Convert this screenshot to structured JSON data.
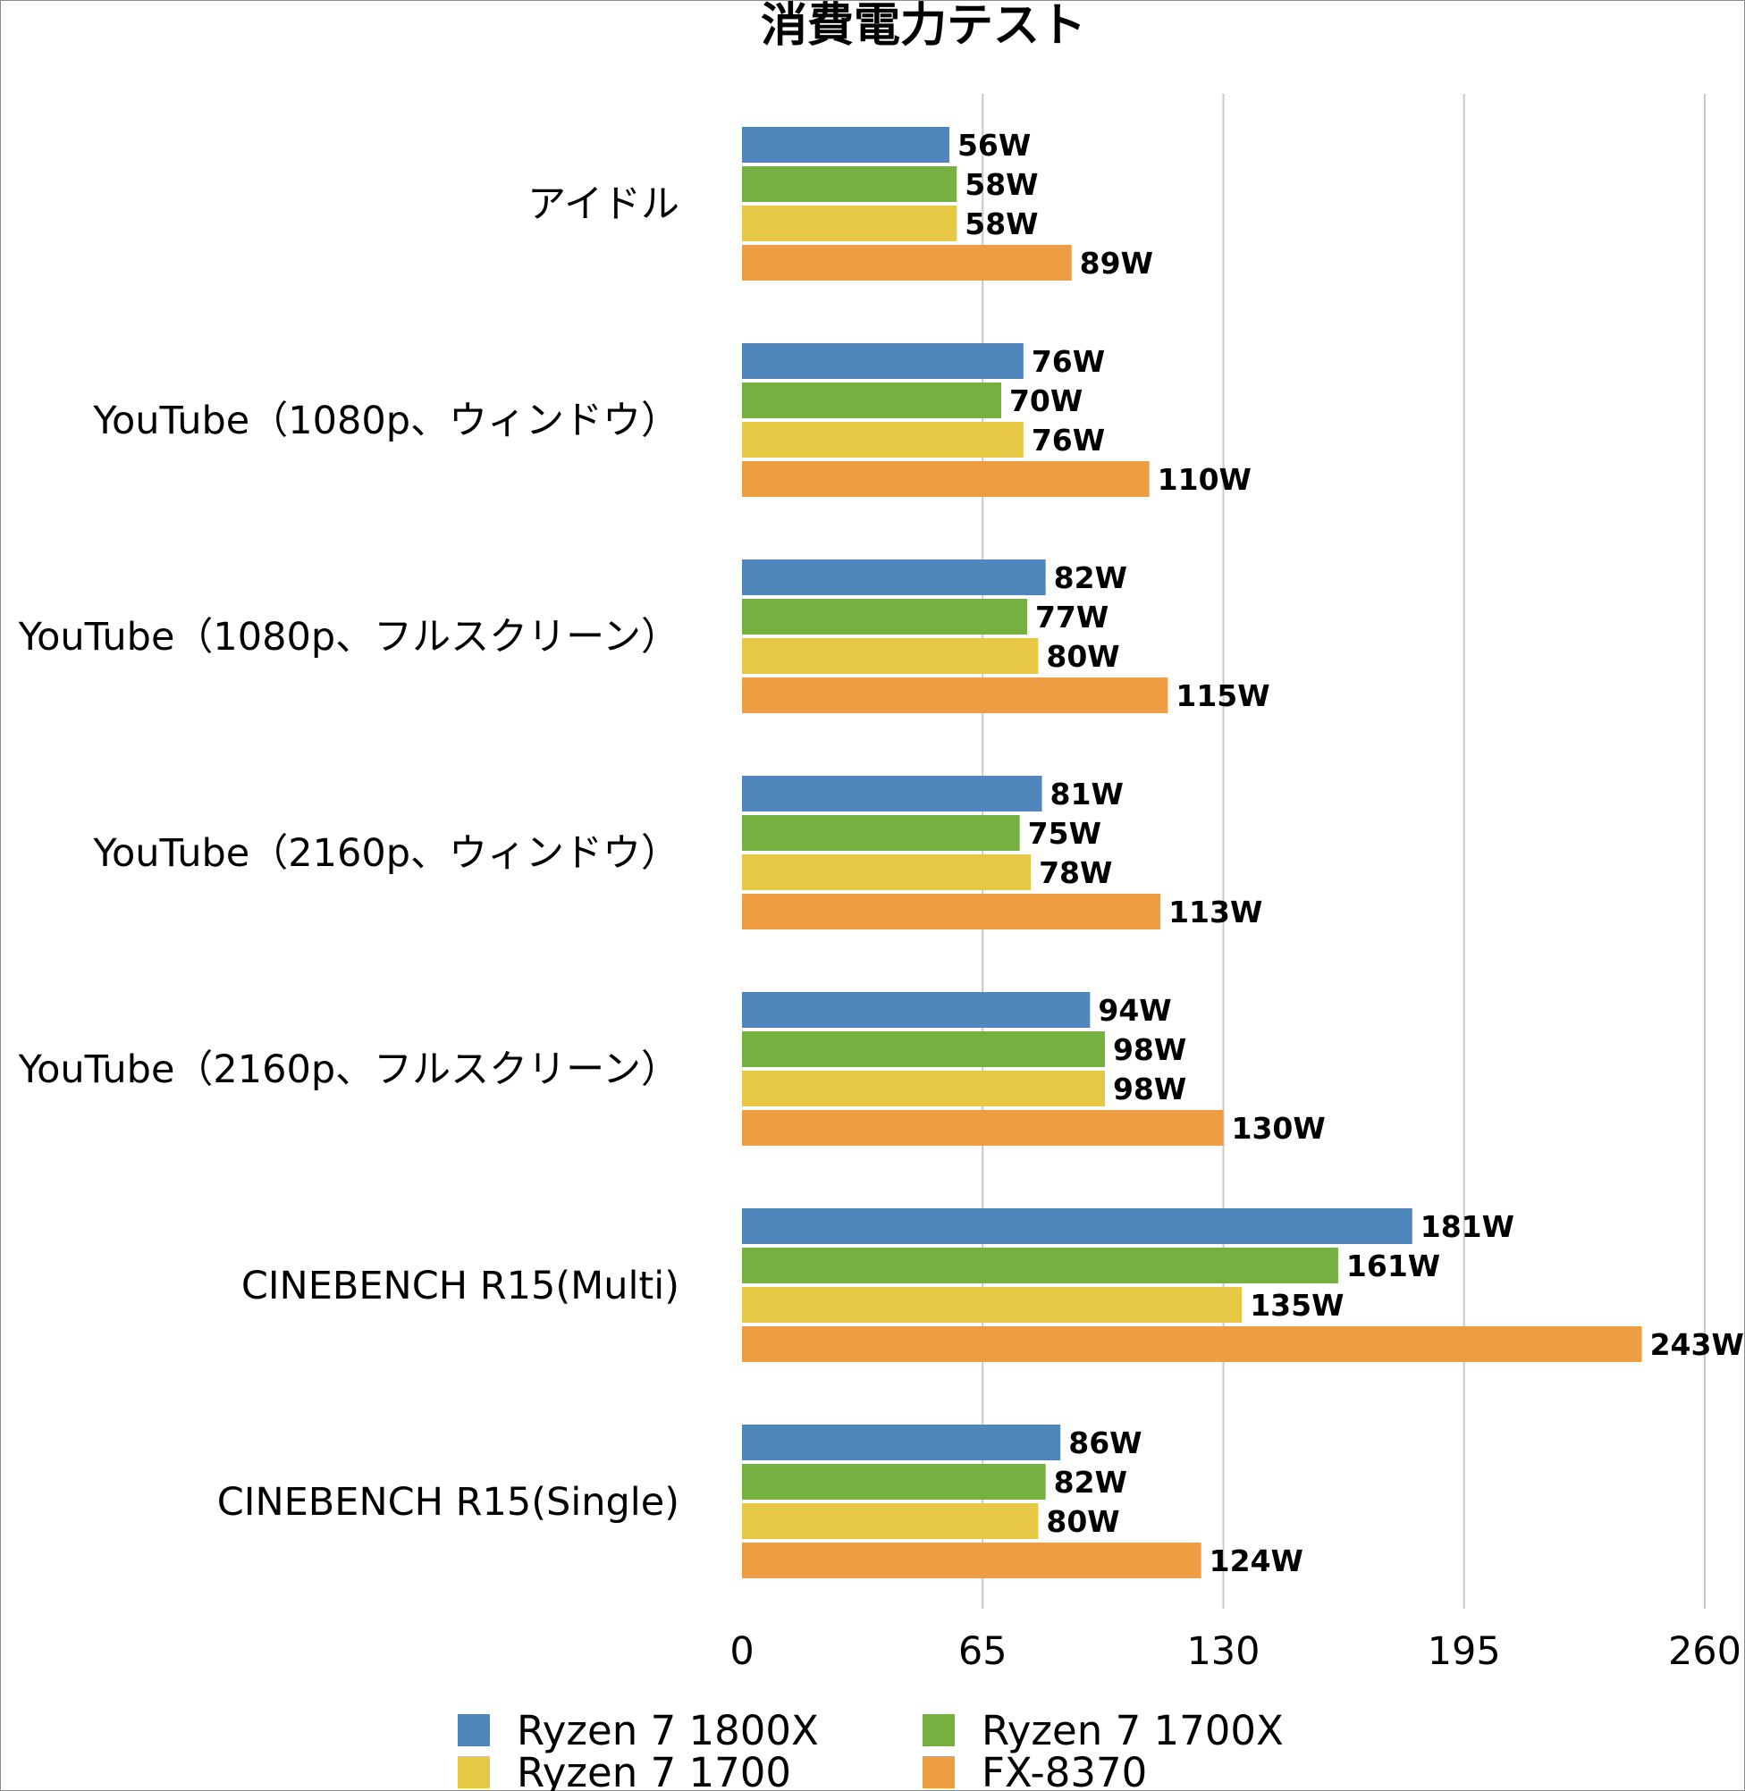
{
  "chart_data": {
    "type": "bar",
    "orientation": "horizontal",
    "title": "消費電力テスト",
    "categories": [
      "アイドル",
      "YouTube（1080p、ウィンドウ）",
      "YouTube（1080p、フルスクリーン）",
      "YouTube（2160p、ウィンドウ）",
      "YouTube（2160p、フルスクリーン）",
      "CINEBENCH R15(Multi)",
      "CINEBENCH R15(Single)"
    ],
    "series": [
      {
        "name": "Ryzen 7 1800X",
        "color": "#4f86bb",
        "values": [
          56,
          76,
          82,
          81,
          94,
          181,
          86
        ],
        "labels": [
          "56W",
          "76W",
          "82W",
          "81W",
          "94W",
          "181W",
          "86W"
        ]
      },
      {
        "name": "Ryzen 7 1700X",
        "color": "#76b041",
        "values": [
          58,
          70,
          77,
          75,
          98,
          161,
          82
        ],
        "labels": [
          "58W",
          "70W",
          "77W",
          "75W",
          "98W",
          "161W",
          "82W"
        ]
      },
      {
        "name": "Ryzen 7 1700",
        "color": "#e6c844",
        "values": [
          58,
          76,
          80,
          78,
          98,
          135,
          80
        ],
        "labels": [
          "58W",
          "76W",
          "80W",
          "78W",
          "98W",
          "135W",
          "80W"
        ]
      },
      {
        "name": "FX-8370",
        "color": "#ef9d42",
        "values": [
          89,
          110,
          115,
          113,
          130,
          243,
          124
        ],
        "labels": [
          "89W",
          "110W",
          "115W",
          "113W",
          "130W",
          "243W",
          "124W"
        ]
      }
    ],
    "xlim": [
      0,
      260
    ],
    "xticks": [
      "0",
      "65",
      "130",
      "195",
      "260"
    ],
    "grid": "vertical",
    "legend": "bottom"
  }
}
